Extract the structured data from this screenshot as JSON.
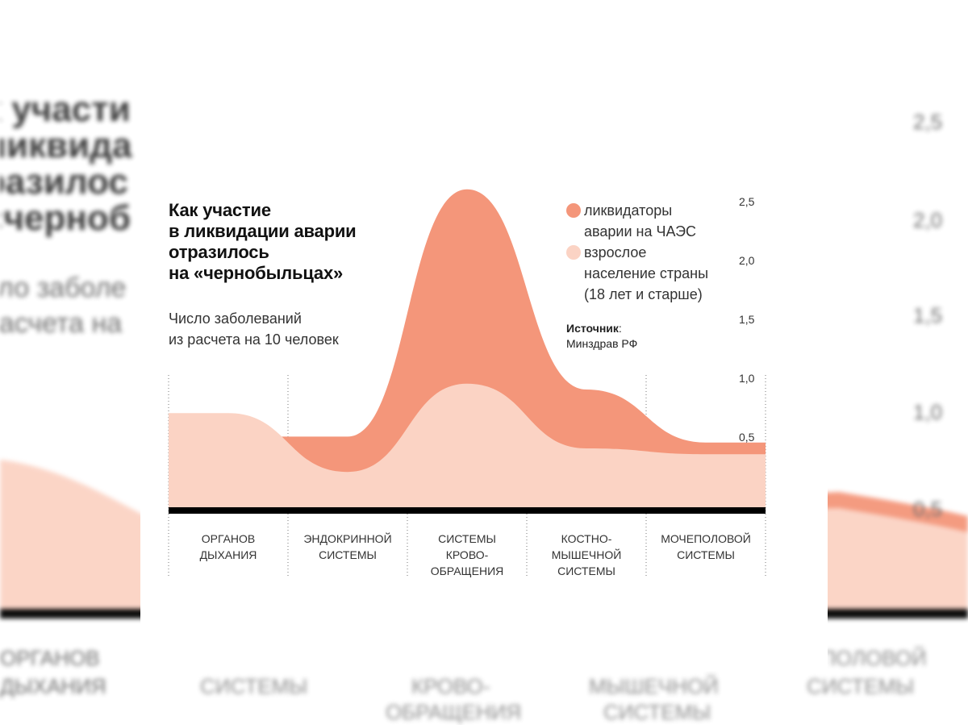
{
  "title": "Как участие\nв ликвидации аварии\nотразилось\nна «чернобыльцах»",
  "subtitle": "Число заболеваний\nиз расчета на 10 человек",
  "legend": {
    "liquidators": "ликвидаторы\nаварии на ЧАЭС",
    "population": "взрослое\nнаселение страны\n(18 лет и старше)"
  },
  "source": {
    "label": "Источник",
    "value": "Минздрав РФ"
  },
  "colors": {
    "liquidators": "#f4967a",
    "population": "#fbd3c4",
    "baseline": "#000000"
  },
  "chart_data": {
    "type": "area",
    "title": "Как участие в ликвидации аварии отразилось на «чернобыльцах»",
    "ylabel": "Число заболеваний из расчета на 10 человек",
    "categories": [
      "ОРГАНОВ\nДЫХАНИЯ",
      "ЭНДОКРИННОЙ\nСИСТЕМЫ",
      "СИСТЕМЫ\nКРОВО-\nОБРАЩЕНИЯ",
      "КОСТНО-\nМЫШЕЧНОЙ\nСИСТЕМЫ",
      "МОЧЕПОЛОВОЙ\nСИСТЕМЫ"
    ],
    "ylim": [
      0,
      2.7
    ],
    "yticks": [
      "2,5",
      "2,0",
      "1,5",
      "1,0",
      "0,5"
    ],
    "series": [
      {
        "name": "ликвидаторы аварии на ЧАЭС",
        "values": [
          0.6,
          0.6,
          2.7,
          1.0,
          0.55
        ]
      },
      {
        "name": "взрослое население страны (18 лет и старше)",
        "values": [
          0.8,
          0.3,
          1.05,
          0.5,
          0.45
        ]
      }
    ]
  }
}
